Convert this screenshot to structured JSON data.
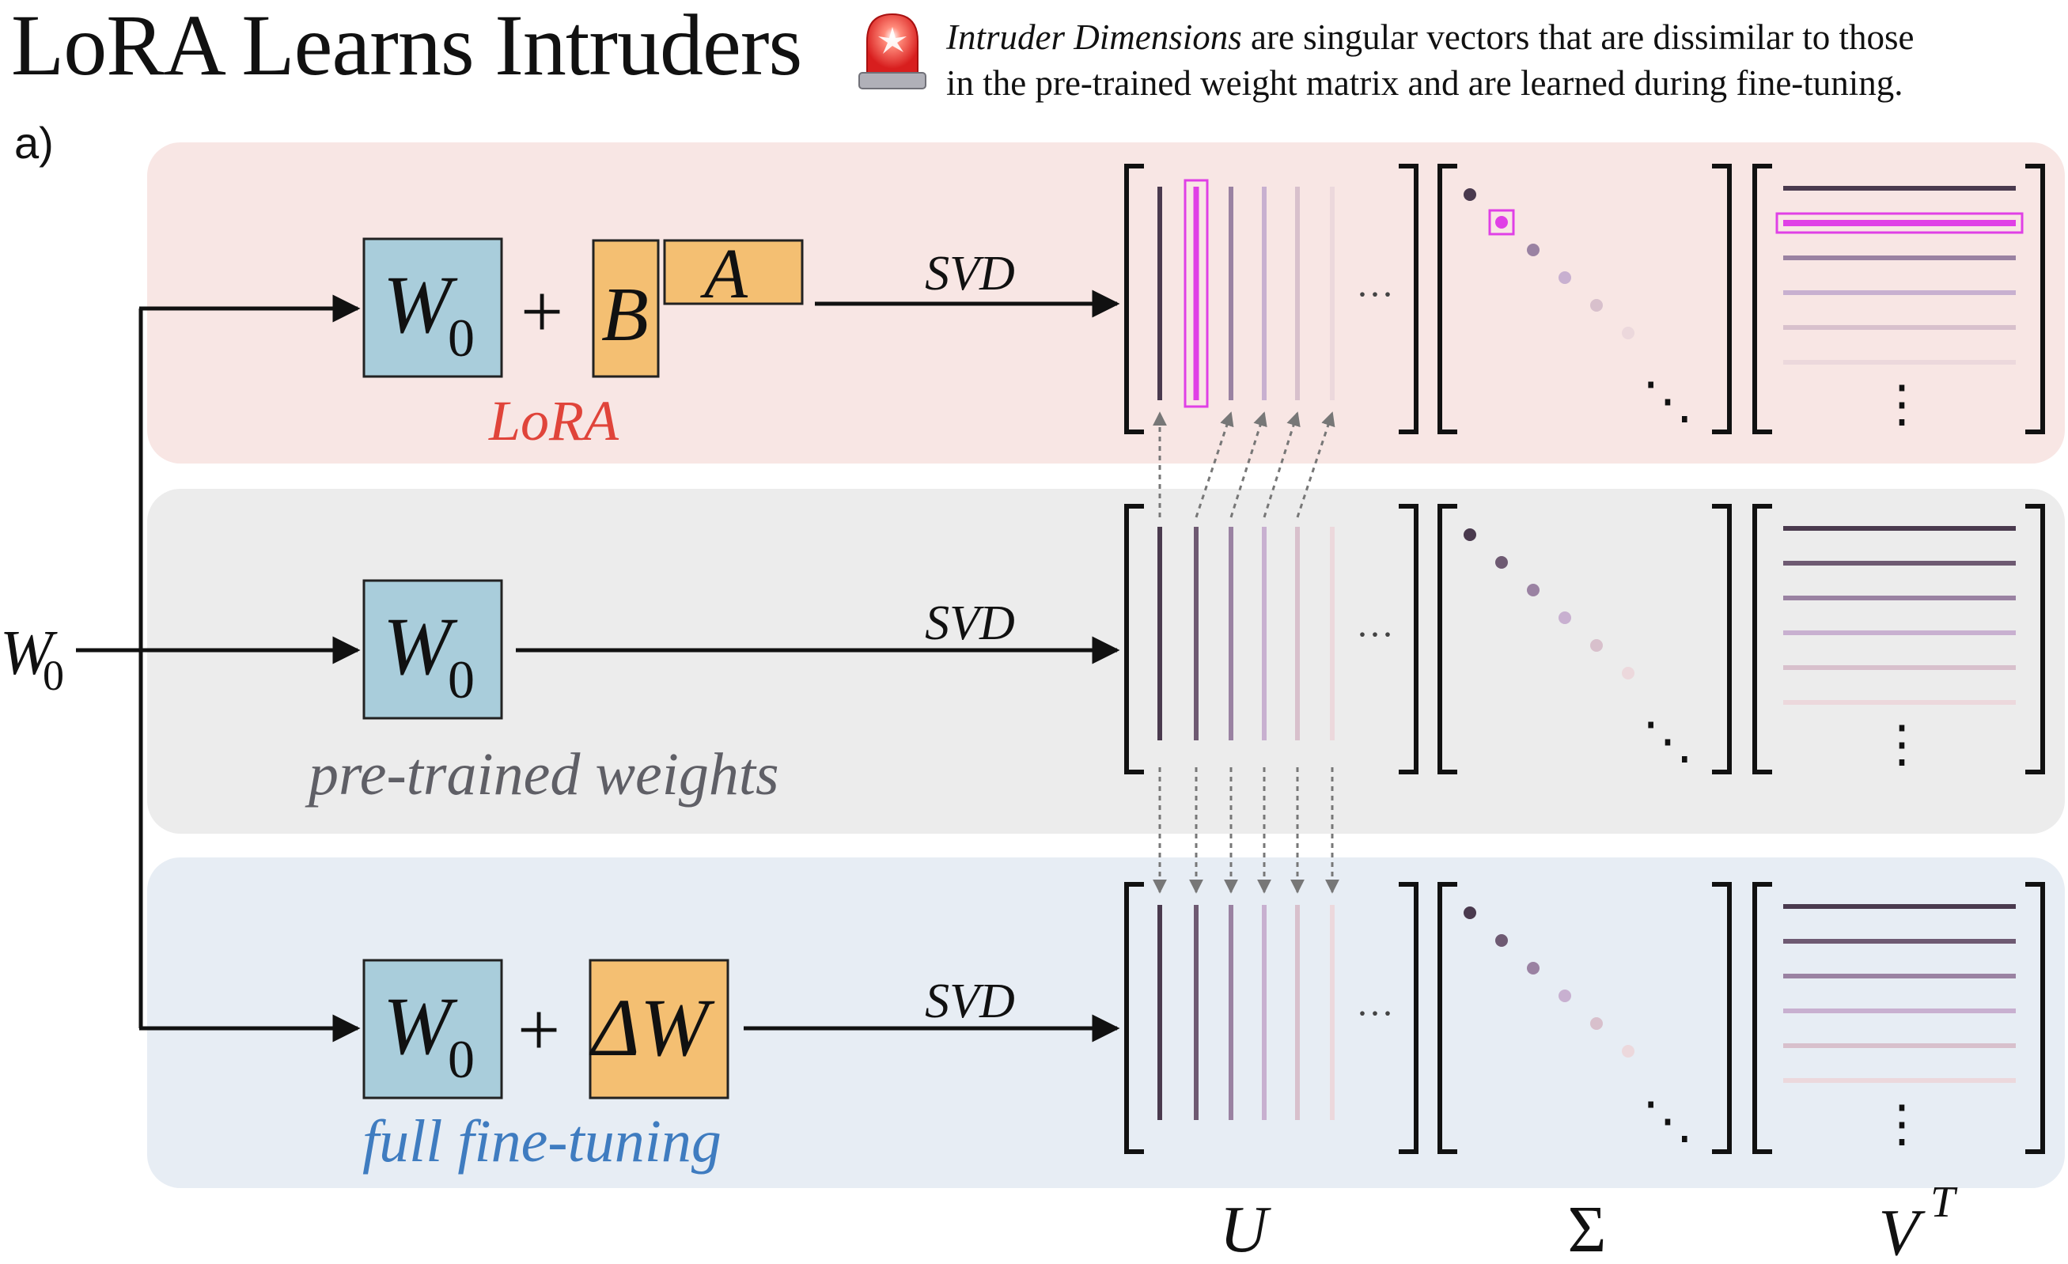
{
  "title": "LoRA Learns Intruders",
  "definition": {
    "term": "Intruder Dimensions",
    "line1_rest": " are singular vectors that are dissimilar to those",
    "line2": "in the pre-trained weight matrix and are learned during fine-tuning."
  },
  "panel_label": "a)",
  "input_label": {
    "base": "W",
    "sub": "0"
  },
  "rows": [
    {
      "name": "lora",
      "caption": "LoRA",
      "caption_color": "#e0443a",
      "background": "#f8e6e4",
      "weight": {
        "base": "W",
        "sub": "0"
      },
      "plus": "+",
      "update_parts": [
        "B",
        "A"
      ],
      "svd_label": "SVD",
      "has_intruder": true
    },
    {
      "name": "pretrained",
      "caption": "pre-trained weights",
      "caption_color": "#5f5f66",
      "background": "#ececec",
      "weight": {
        "base": "W",
        "sub": "0"
      },
      "svd_label": "SVD",
      "has_intruder": false
    },
    {
      "name": "full-finetuning",
      "caption": "full fine-tuning",
      "caption_color": "#3f7cc0",
      "background": "#e7edf4",
      "weight": {
        "base": "W",
        "sub": "0"
      },
      "plus": "+",
      "update_label": "ΔW",
      "svd_label": "SVD",
      "has_intruder": false
    }
  ],
  "matrix_labels": {
    "u": "U",
    "sigma": "Σ",
    "vt_base": "V",
    "vt_sup": "T"
  },
  "ellipsis": {
    "horizontal": "···",
    "vertical": "⋮",
    "diagonal": "⋱"
  },
  "colors": {
    "weight_box": "#a9cddb",
    "update_box": "#f4bf72",
    "intruder": "#e040e6",
    "vector_shades": [
      "#4a3a4e",
      "#6e5a72",
      "#9a82a2",
      "#c8b0d0",
      "#d8c0cc",
      "#ecd8dc"
    ]
  }
}
